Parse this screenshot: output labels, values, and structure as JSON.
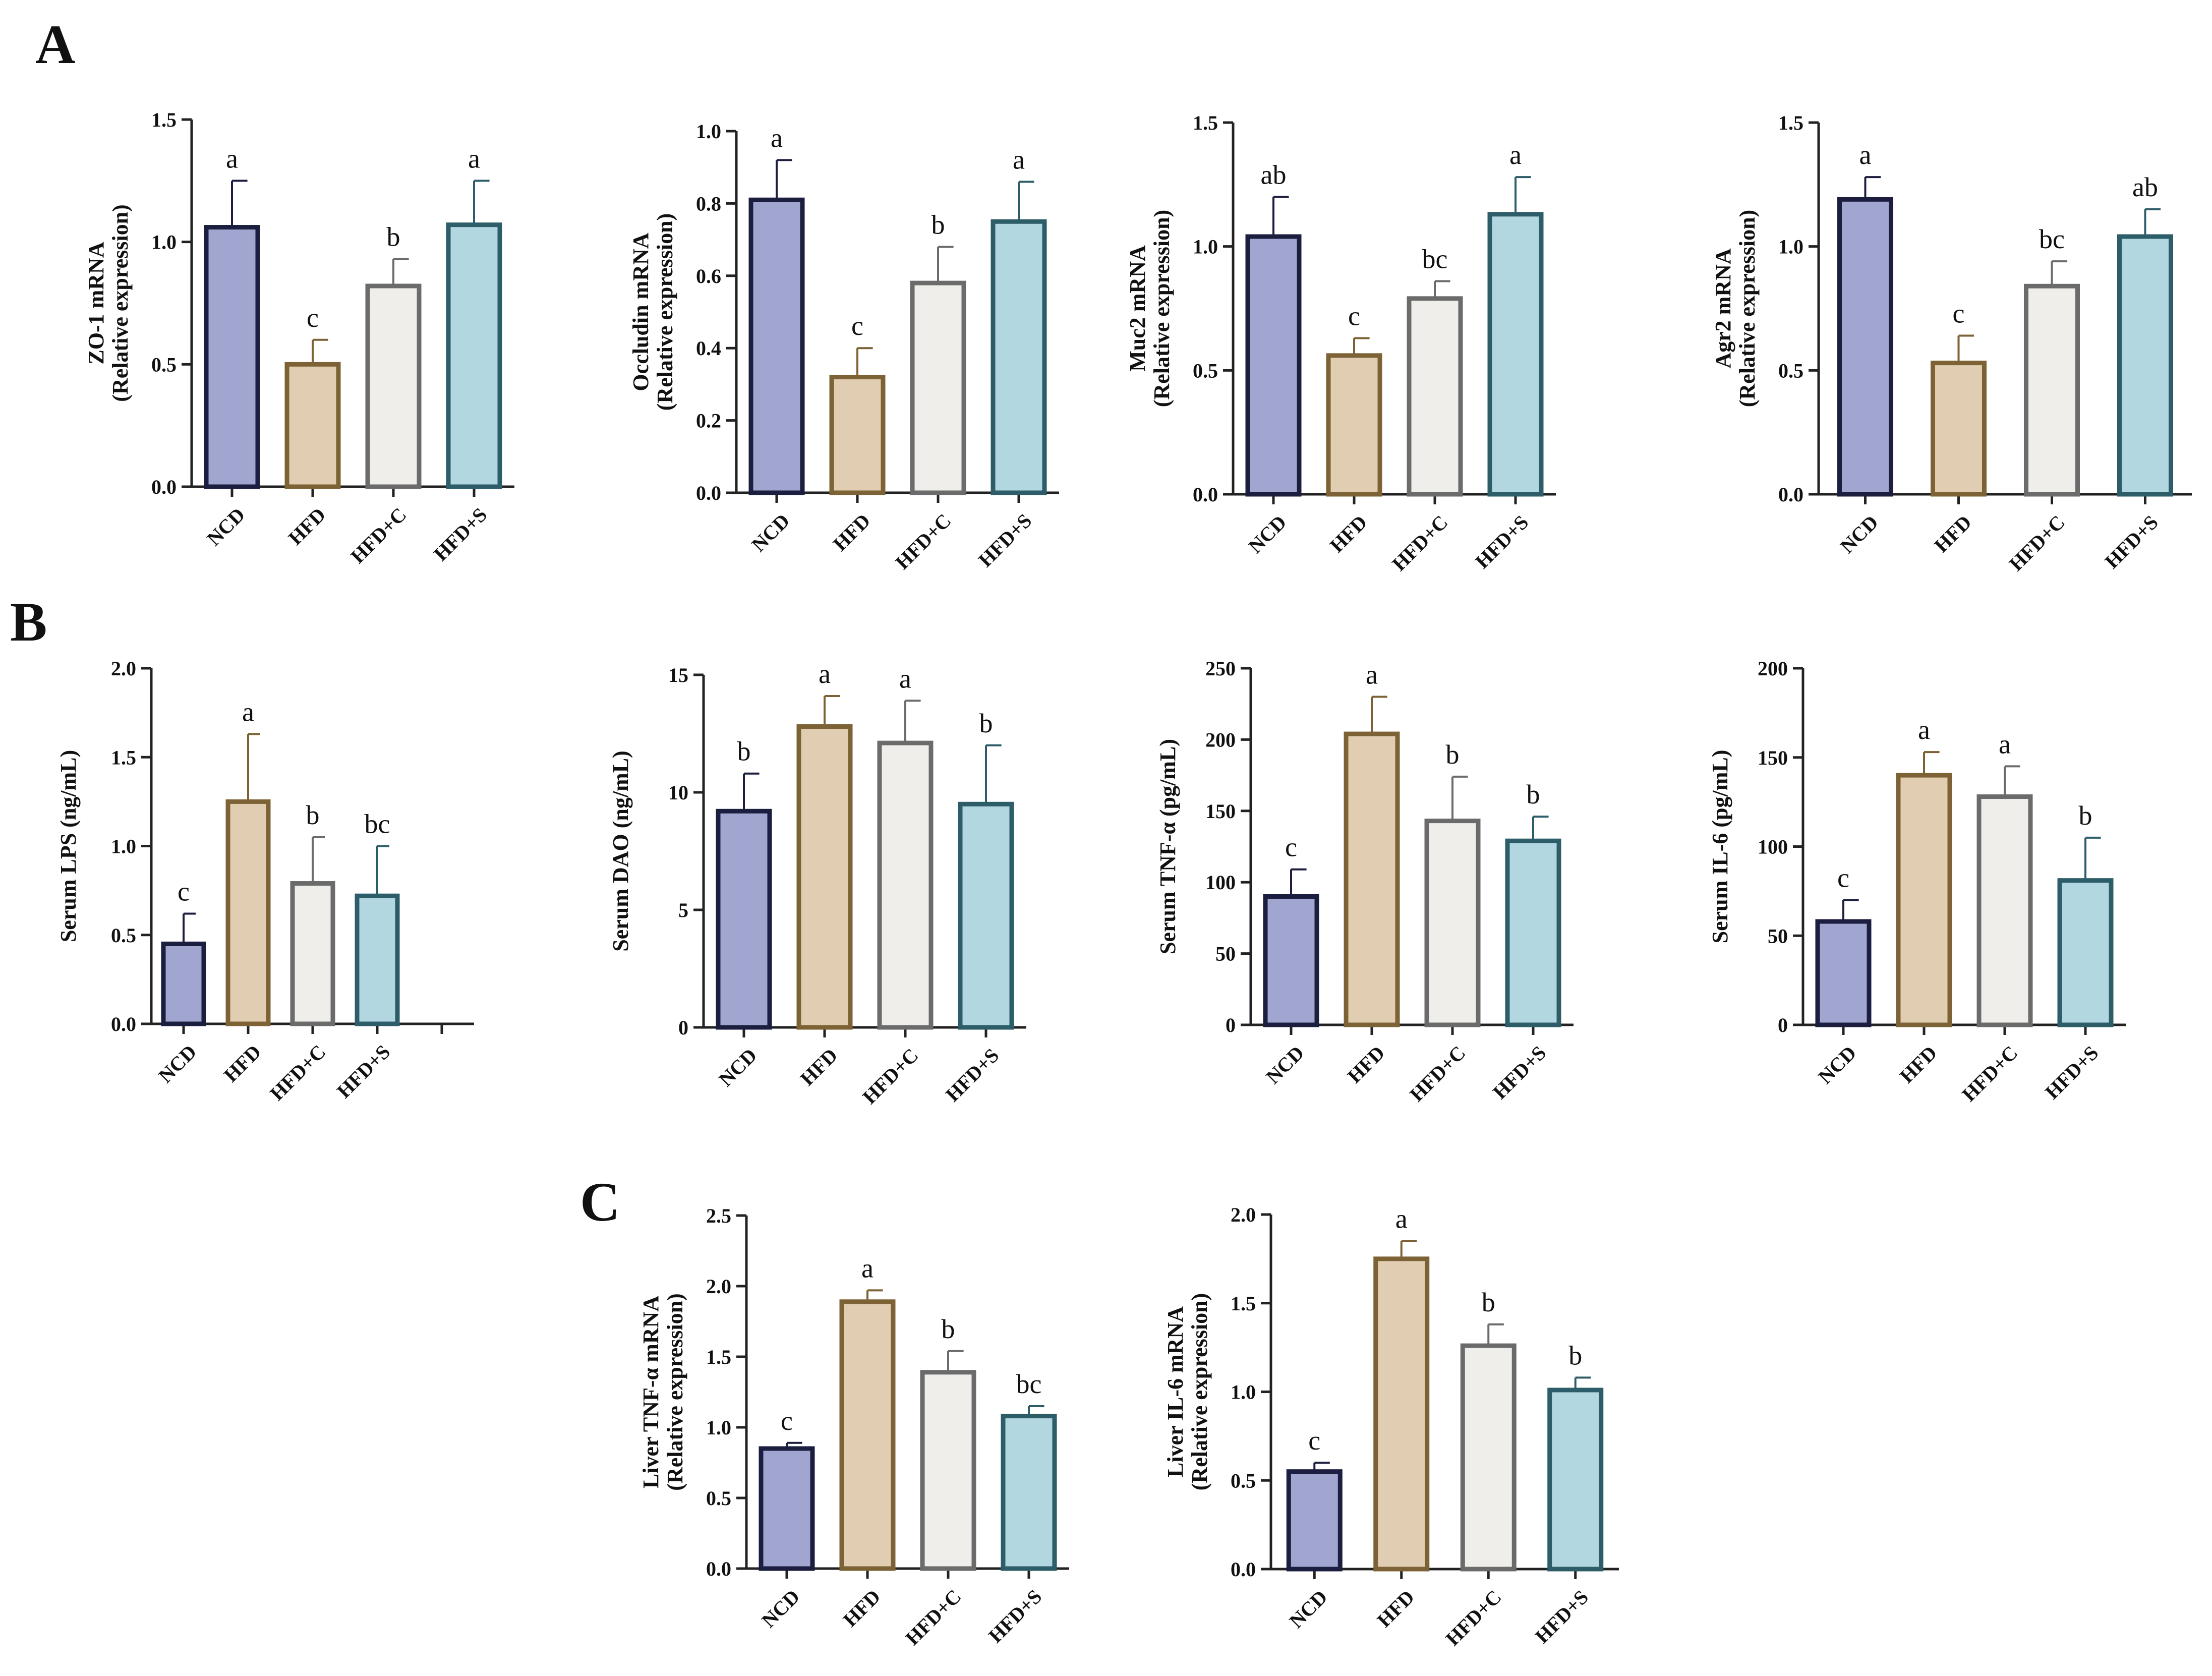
{
  "figure": {
    "categories": [
      "NCD",
      "HFD",
      "HFD+C",
      "HFD+S"
    ],
    "bar_colors": {
      "fill": [
        "#a0a6cf",
        "#e0cdb2",
        "#efeeea",
        "#b3d7e0"
      ],
      "stroke": [
        "#1c1e3f",
        "#7c6234",
        "#6b6b6b",
        "#2c5d69"
      ]
    },
    "axis_color": "#222222",
    "panels": [
      {
        "id": "A",
        "label": "A"
      },
      {
        "id": "B",
        "label": "B"
      },
      {
        "id": "C",
        "label": "C"
      }
    ]
  },
  "chart_data": [
    {
      "panel": "A",
      "type": "bar",
      "categories": [
        "NCD",
        "HFD",
        "HFD+C",
        "HFD+S"
      ],
      "ylabel_line1": "ZO-1 mRNA",
      "ylabel_line2": "(Relative expression)",
      "ylim": [
        0,
        1.5
      ],
      "yticks": [
        "0.0",
        "0.5",
        "1.0",
        "1.5"
      ],
      "values": [
        1.06,
        0.5,
        0.82,
        1.07
      ],
      "errors": [
        0.19,
        0.1,
        0.11,
        0.18
      ],
      "letters": [
        "a",
        "c",
        "b",
        "a"
      ],
      "extra_slot": false
    },
    {
      "panel": "A",
      "type": "bar",
      "categories": [
        "NCD",
        "HFD",
        "HFD+C",
        "HFD+S"
      ],
      "ylabel_line1": "Occludin mRNA",
      "ylabel_line2": "(Relative expression)",
      "ylim": [
        0,
        1.0
      ],
      "yticks": [
        "0.0",
        "0.2",
        "0.4",
        "0.6",
        "0.8",
        "1.0"
      ],
      "values": [
        0.81,
        0.32,
        0.58,
        0.75
      ],
      "errors": [
        0.11,
        0.08,
        0.1,
        0.11
      ],
      "letters": [
        "a",
        "c",
        "b",
        "a"
      ],
      "extra_slot": false
    },
    {
      "panel": "A",
      "type": "bar",
      "categories": [
        "NCD",
        "HFD",
        "HFD+C",
        "HFD+S"
      ],
      "ylabel_line1": "Muc2 mRNA",
      "ylabel_line2": "(Relative expression)",
      "ylim": [
        0,
        1.5
      ],
      "yticks": [
        "0.0",
        "0.5",
        "1.0",
        "1.5"
      ],
      "values": [
        1.04,
        0.56,
        0.79,
        1.13
      ],
      "errors": [
        0.16,
        0.07,
        0.07,
        0.15
      ],
      "letters": [
        "ab",
        "c",
        "bc",
        "a"
      ],
      "extra_slot": false
    },
    {
      "panel": "A",
      "type": "bar",
      "categories": [
        "NCD",
        "HFD",
        "HFD+C",
        "HFD+S"
      ],
      "ylabel_line1": "Agr2 mRNA",
      "ylabel_line2": "(Relative expression)",
      "ylim": [
        0,
        1.5
      ],
      "yticks": [
        "0.0",
        "0.5",
        "1.0",
        "1.5"
      ],
      "values": [
        1.19,
        0.53,
        0.84,
        1.04
      ],
      "errors": [
        0.09,
        0.11,
        0.1,
        0.11
      ],
      "letters": [
        "a",
        "c",
        "bc",
        "ab"
      ],
      "extra_slot": false
    },
    {
      "panel": "B",
      "type": "bar",
      "categories": [
        "NCD",
        "HFD",
        "HFD+C",
        "HFD+S"
      ],
      "ylabel_line1": "Serum LPS  (ng/mL)",
      "ylabel_line2": "",
      "ylim": [
        0,
        2.0
      ],
      "yticks": [
        "0.0",
        "0.5",
        "1.0",
        "1.5",
        "2.0"
      ],
      "values": [
        0.45,
        1.25,
        0.79,
        0.72
      ],
      "errors": [
        0.17,
        0.38,
        0.26,
        0.28
      ],
      "letters": [
        "c",
        "a",
        "b",
        "bc"
      ],
      "extra_slot": true
    },
    {
      "panel": "B",
      "type": "bar",
      "categories": [
        "NCD",
        "HFD",
        "HFD+C",
        "HFD+S"
      ],
      "ylabel_line1": "Serum DAO (ng/mL)",
      "ylabel_line2": "",
      "ylim": [
        0,
        15
      ],
      "yticks": [
        "0",
        "5",
        "10",
        "15"
      ],
      "values": [
        9.2,
        12.8,
        12.1,
        9.5
      ],
      "errors": [
        1.6,
        1.3,
        1.8,
        2.5
      ],
      "letters": [
        "b",
        "a",
        "a",
        "b"
      ],
      "extra_slot": false
    },
    {
      "panel": "B",
      "type": "bar",
      "categories": [
        "NCD",
        "HFD",
        "HFD+C",
        "HFD+S"
      ],
      "ylabel_line1": "Serum TNF-α (pg/mL)",
      "ylabel_line2": "",
      "ylim": [
        0,
        250
      ],
      "yticks": [
        "0",
        "50",
        "100",
        "150",
        "200",
        "250"
      ],
      "values": [
        90,
        204,
        143,
        129
      ],
      "errors": [
        19,
        26,
        31,
        17
      ],
      "letters": [
        "c",
        "a",
        "b",
        "b"
      ],
      "extra_slot": false
    },
    {
      "panel": "B",
      "type": "bar",
      "categories": [
        "NCD",
        "HFD",
        "HFD+C",
        "HFD+S"
      ],
      "ylabel_line1": "Serum IL-6 (pg/mL)",
      "ylabel_line2": "",
      "ylim": [
        0,
        200
      ],
      "yticks": [
        "0",
        "50",
        "100",
        "150",
        "200"
      ],
      "values": [
        58,
        140,
        128,
        81
      ],
      "errors": [
        12,
        13,
        17,
        24
      ],
      "letters": [
        "c",
        "a",
        "a",
        "b"
      ],
      "extra_slot": false
    },
    {
      "panel": "C",
      "type": "bar",
      "categories": [
        "NCD",
        "HFD",
        "HFD+C",
        "HFD+S"
      ],
      "ylabel_line1": "Liver TNF-α mRNA",
      "ylabel_line2": "(Relative expression)",
      "ylim": [
        0,
        2.5
      ],
      "yticks": [
        "0.0",
        "0.5",
        "1.0",
        "1.5",
        "2.0",
        "2.5"
      ],
      "values": [
        0.85,
        1.89,
        1.39,
        1.08
      ],
      "errors": [
        0.04,
        0.08,
        0.15,
        0.07
      ],
      "letters": [
        "c",
        "a",
        "b",
        "bc"
      ],
      "extra_slot": false
    },
    {
      "panel": "C",
      "type": "bar",
      "categories": [
        "NCD",
        "HFD",
        "HFD+C",
        "HFD+S"
      ],
      "ylabel_line1": "Liver IL-6 mRNA",
      "ylabel_line2": "(Relative expression)",
      "ylim": [
        0,
        2.0
      ],
      "yticks": [
        "0.0",
        "0.5",
        "1.0",
        "1.5",
        "2.0"
      ],
      "values": [
        0.55,
        1.75,
        1.26,
        1.01
      ],
      "errors": [
        0.05,
        0.1,
        0.12,
        0.07
      ],
      "letters": [
        "c",
        "a",
        "b",
        "b"
      ],
      "extra_slot": false
    }
  ]
}
